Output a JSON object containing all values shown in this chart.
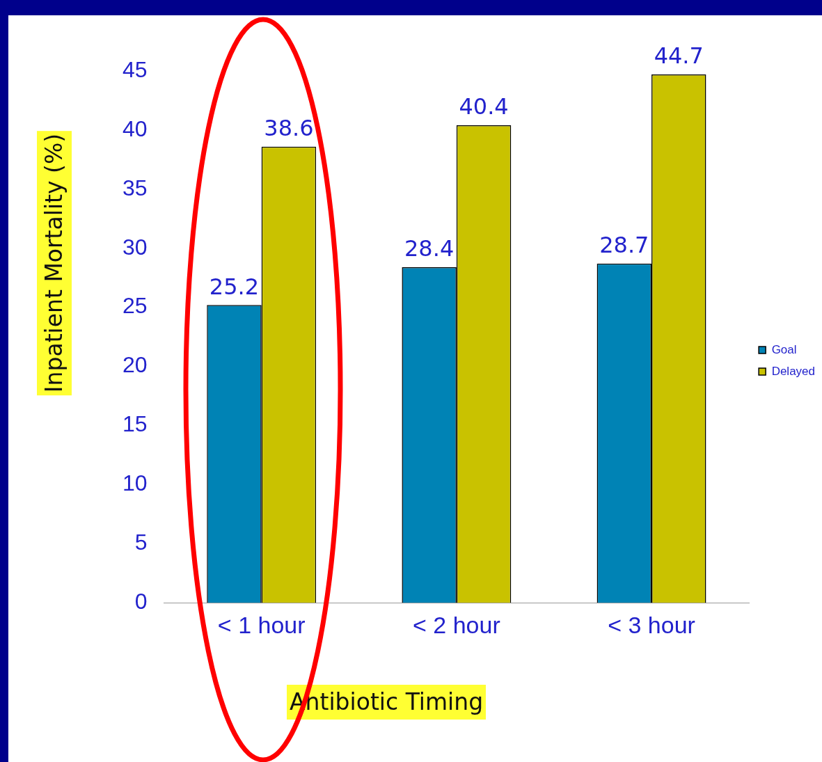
{
  "chart_data": {
    "type": "bar",
    "xlabel": "Antibiotic Timing",
    "ylabel": "Inpatient Mortality (%)",
    "categories": [
      "< 1 hour",
      "< 2 hour",
      "< 3 hour"
    ],
    "series": [
      {
        "name": "Goal",
        "color": "#0083b5",
        "values": [
          25.2,
          28.4,
          28.7
        ]
      },
      {
        "name": "Delayed",
        "color": "#c9c200",
        "values": [
          38.6,
          40.4,
          44.7
        ]
      }
    ],
    "ylim": [
      0,
      45
    ],
    "yticks": [
      0,
      5,
      10,
      15,
      20,
      25,
      30,
      35,
      40,
      45
    ],
    "grid": false,
    "legend": "right",
    "data_labels": true
  }
}
